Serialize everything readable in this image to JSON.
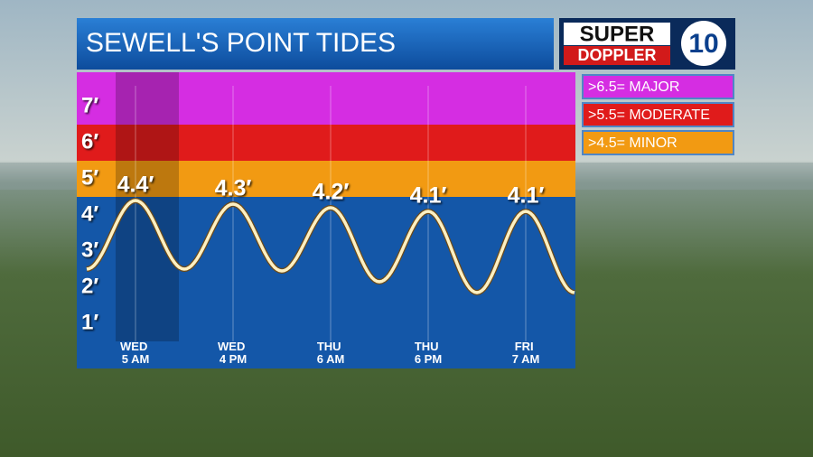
{
  "chart_data": {
    "type": "line",
    "title": "SEWELL'S POINT TIDES",
    "logo": {
      "line1": "SUPER",
      "line2": "DOPPLER",
      "number": "10"
    },
    "categories": [
      null,
      "WED 5 AM",
      null,
      "WED 4 PM",
      null,
      "THU 6 AM",
      null,
      "THU 6 PM",
      null,
      "FRI 7 AM",
      null
    ],
    "values": [
      2.5,
      4.4,
      2.5,
      4.3,
      2.45,
      4.2,
      2.15,
      4.1,
      1.85,
      4.1,
      1.85
    ],
    "value_labels": [
      null,
      "4.4′",
      null,
      "4.3′",
      null,
      "4.2′",
      null,
      "4.1′",
      null,
      "4.1′",
      null
    ],
    "color": "#fdf0c2",
    "ylim": [
      0.5,
      7.95
    ],
    "yticks": [
      {
        "value": 1,
        "label": "1′"
      },
      {
        "value": 2,
        "label": "2′"
      },
      {
        "value": 3,
        "label": "3′"
      },
      {
        "value": 4,
        "label": "4′"
      },
      {
        "value": 5,
        "label": "5′"
      },
      {
        "value": 6,
        "label": "6′"
      },
      {
        "value": 7,
        "label": "7′"
      }
    ],
    "grid": true,
    "thresholds": [
      {
        "value": 6.5,
        "label": ">6.5= MAJOR",
        "color": "#d52de2"
      },
      {
        "value": 5.5,
        "label": ">5.5= MODERATE",
        "color": "#e01b1b"
      },
      {
        "value": 4.5,
        "label": ">4.5= MINOR",
        "color": "#f29a12"
      }
    ],
    "below_color": "#1457a8"
  }
}
